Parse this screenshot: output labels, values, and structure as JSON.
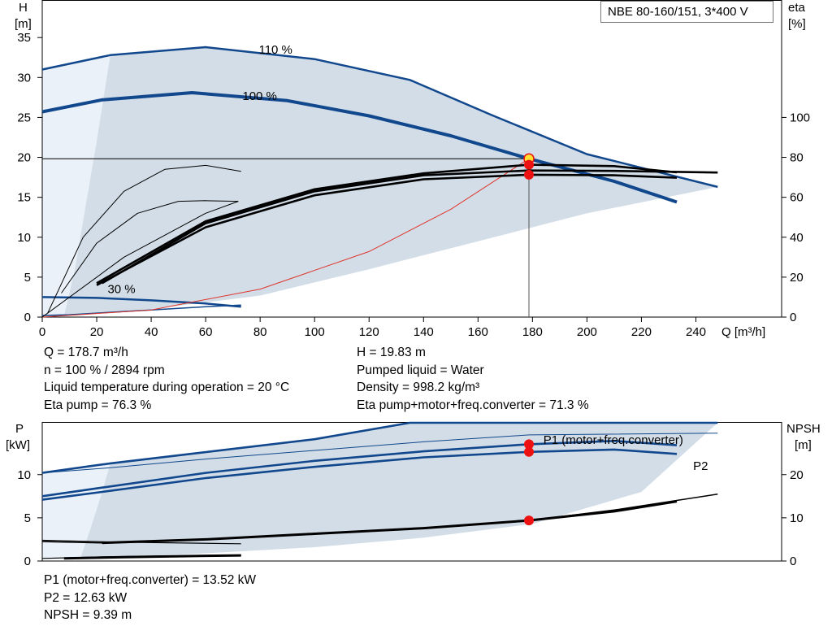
{
  "title": "NBE 80-160/151, 3*400 V",
  "colors": {
    "curve": "#11478c",
    "region_fill": "#d2dde8",
    "region_fill_light": "#eaf1f8",
    "eta": "#000000",
    "system_curve": "#e0352a",
    "duty_point": "#ee1111",
    "duty_point_yellow": "#ffe033"
  },
  "chart_data": [
    {
      "type": "line",
      "name": "head-efficiency",
      "xlabel": "Q [m³/h]",
      "ylabel_left": [
        "H",
        "[m]"
      ],
      "ylabel_right": [
        "eta",
        "[%]"
      ],
      "x_ticks": [
        0,
        20,
        40,
        60,
        80,
        100,
        120,
        140,
        160,
        180,
        200,
        220,
        240
      ],
      "y_ticks_left": [
        0,
        5,
        10,
        15,
        20,
        25,
        30,
        35
      ],
      "y_ticks_right": [
        0,
        20,
        40,
        60,
        80,
        100
      ],
      "xlim": [
        0,
        250
      ],
      "ylim_left": [
        0,
        39.6
      ],
      "ylim_right": [
        0,
        158.4
      ],
      "grid": false,
      "curve_labels": [
        "110 %",
        "100 %",
        "30 %"
      ],
      "series": [
        {
          "name": "110 %",
          "axis": "left",
          "role": "head",
          "x": [
            0,
            25,
            60,
            100,
            135,
            165,
            200,
            248
          ],
          "y": [
            31.0,
            32.8,
            33.8,
            32.3,
            29.7,
            25.3,
            20.4,
            16.3
          ]
        },
        {
          "name": "100 %",
          "axis": "left",
          "role": "head",
          "x": [
            0,
            22,
            55,
            90,
            120,
            150,
            178.7,
            210,
            233
          ],
          "y": [
            25.7,
            27.2,
            28.1,
            27.1,
            25.2,
            22.7,
            19.83,
            17.0,
            14.4
          ]
        },
        {
          "name": "30 %",
          "axis": "left",
          "role": "head",
          "x": [
            0,
            20,
            40,
            60,
            73
          ],
          "y": [
            2.5,
            2.4,
            2.1,
            1.7,
            1.3
          ]
        },
        {
          "axis": "left",
          "role": "min-head",
          "x": [
            0,
            10,
            20,
            30,
            40,
            50,
            60,
            73
          ],
          "y": [
            0.2,
            0.3,
            0.5,
            0.7,
            0.9,
            1.1,
            1.3,
            1.5
          ]
        },
        {
          "axis": "left",
          "role": "system-curve",
          "x": [
            0,
            40,
            80,
            120,
            150,
            178.7
          ],
          "y": [
            0,
            0.9,
            3.5,
            8.2,
            13.5,
            19.83
          ]
        },
        {
          "axis": "right",
          "role": "eta",
          "x": [
            22,
            60,
            100,
            140,
            178.7,
            210,
            248
          ],
          "y": [
            17,
            47,
            63,
            71,
            73.4,
            73.2,
            72.4
          ]
        },
        {
          "axis": "right",
          "role": "eta",
          "x": [
            20,
            60,
            100,
            140,
            178.7,
            210,
            233
          ],
          "y": [
            16,
            45,
            61,
            69,
            71.3,
            71.0,
            69.8
          ]
        },
        {
          "axis": "right",
          "role": "eta",
          "x": [
            20,
            60,
            100,
            140,
            178.7,
            210,
            233
          ],
          "y": [
            17,
            48,
            64,
            72,
            76.3,
            75.6,
            72.5
          ]
        },
        {
          "axis": "right",
          "role": "eta",
          "x": [
            7,
            20,
            35,
            50,
            60,
            72
          ],
          "y": [
            12,
            37,
            52,
            58,
            58.3,
            58
          ]
        },
        {
          "axis": "right",
          "role": "eta",
          "x": [
            2,
            15,
            30,
            45,
            60,
            73
          ],
          "y": [
            2,
            40,
            63,
            74,
            76,
            73
          ]
        },
        {
          "axis": "right",
          "role": "eta",
          "x": [
            0,
            30,
            60,
            72
          ],
          "y": [
            0,
            30,
            52,
            58
          ]
        }
      ],
      "duty_points": [
        {
          "x": 178.7,
          "y": 19.83,
          "axis": "left",
          "color": "yellow"
        },
        {
          "x": 178.7,
          "y": 76.3,
          "axis": "right"
        },
        {
          "x": 178.7,
          "y": 71.3,
          "axis": "right"
        }
      ],
      "readouts_left": [
        "Q = 178.7 m³/h",
        "n = 100 % / 2894 rpm",
        "Liquid temperature during operation = 20 °C",
        "Eta pump = 76.3 %"
      ],
      "readouts_right": [
        "H = 19.83 m",
        "Pumped liquid = Water",
        "Density = 998.2 kg/m³",
        "Eta pump+motor+freq.converter = 71.3 %"
      ]
    },
    {
      "type": "line",
      "name": "power-npsh",
      "ylabel_left": [
        "P",
        "[kW]"
      ],
      "ylabel_right": [
        "NPSH",
        "[m]"
      ],
      "y_ticks_left": [
        0,
        5,
        10
      ],
      "y_ticks_right": [
        0,
        10,
        20
      ],
      "xlim": [
        0,
        250
      ],
      "ylim_left": [
        0,
        16.0
      ],
      "ylim_right": [
        0,
        32.0
      ],
      "grid": false,
      "curve_labels": [
        "P1 (motor+freq.converter)",
        "P2"
      ],
      "series": [
        {
          "name": "P1 (motor+freq.converter)",
          "axis": "left",
          "role": "power",
          "x": [
            0,
            25,
            60,
            100,
            135,
            248
          ],
          "y": [
            10.2,
            11.3,
            12.6,
            14.1,
            16.0,
            16.0
          ]
        },
        {
          "axis": "left",
          "role": "power",
          "x": [
            0,
            25,
            60,
            100,
            140,
            178.7,
            248
          ],
          "y": [
            10.2,
            10.8,
            11.8,
            12.8,
            13.8,
            14.6,
            14.8
          ]
        },
        {
          "axis": "left",
          "role": "power",
          "x": [
            0,
            22,
            60,
            100,
            140,
            178.7,
            210,
            233
          ],
          "y": [
            7.5,
            8.5,
            10.2,
            11.6,
            12.7,
            13.52,
            13.9,
            13.4
          ]
        },
        {
          "name": "P2",
          "axis": "left",
          "role": "power",
          "x": [
            0,
            22,
            60,
            100,
            140,
            178.7,
            210,
            233
          ],
          "y": [
            7.1,
            8.0,
            9.6,
            10.9,
            12.0,
            12.63,
            12.9,
            12.4
          ]
        },
        {
          "axis": "left",
          "role": "power",
          "x": [
            0,
            25,
            73
          ],
          "y": [
            2.4,
            2.2,
            2.0
          ]
        },
        {
          "axis": "left",
          "role": "power",
          "x": [
            0,
            25,
            73
          ],
          "y": [
            0.3,
            0.5,
            0.7
          ]
        },
        {
          "axis": "right",
          "role": "npsh",
          "x": [
            0,
            22,
            60,
            100,
            140,
            178.7,
            210,
            248
          ],
          "y": [
            4.5,
            4.2,
            5.0,
            6.3,
            7.6,
            9.39,
            11.8,
            15.5
          ]
        },
        {
          "axis": "right",
          "role": "npsh",
          "x": [
            22,
            60,
            100,
            140,
            178.7,
            210,
            233
          ],
          "y": [
            4.2,
            5.0,
            6.3,
            7.6,
            9.39,
            11.5,
            13.8
          ]
        },
        {
          "axis": "right",
          "role": "npsh",
          "x": [
            8,
            30,
            60,
            73
          ],
          "y": [
            0.6,
            0.9,
            1.2,
            1.3
          ]
        }
      ],
      "duty_points": [
        {
          "x": 178.7,
          "y": 13.52,
          "axis": "left"
        },
        {
          "x": 178.7,
          "y": 12.63,
          "axis": "left"
        },
        {
          "x": 178.7,
          "y": 9.39,
          "axis": "right"
        }
      ],
      "readouts": [
        "P1 (motor+freq.converter) = 13.52 kW",
        "P2 = 12.63 kW",
        "NPSH = 9.39 m"
      ]
    }
  ]
}
